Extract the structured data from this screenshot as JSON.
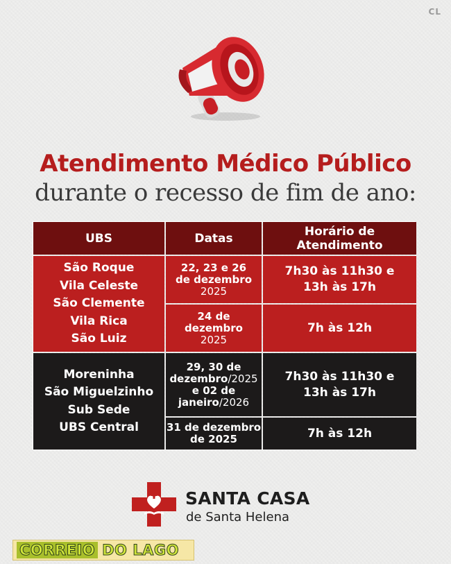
{
  "corner_mark": "CL",
  "title_line1": "Atendimento Médico Público",
  "title_line2": "durante o recesso de fim de ano:",
  "table": {
    "headers": [
      "UBS",
      "Datas",
      "Horário de Atendimento"
    ],
    "group1": {
      "ubs": [
        "São Roque",
        "Vila Celeste",
        "São Clemente",
        "Vila Rica",
        "São Luiz"
      ],
      "row1": {
        "date_line1": "22, 23 e 26",
        "date_line2": "de dezembro",
        "date_year": "2025",
        "hours_line1": "7h30 às 11h30 e",
        "hours_line2": "13h às 17h"
      },
      "row2": {
        "date_line1": "24 de",
        "date_line2": "dezembro",
        "date_year": "2025",
        "hours": "7h às 12h"
      }
    },
    "group2": {
      "ubs": [
        "Moreninha",
        "São Miguelzinho",
        "Sub Sede",
        "UBS Central"
      ],
      "row1": {
        "date_line1": "29, 30 de",
        "date_line2a": "dezembro",
        "date_line2b": "/2025",
        "date_line3": "e 02 de",
        "date_line4a": "janeiro",
        "date_line4b": "/2026",
        "hours_line1": "7h30 às 11h30 e",
        "hours_line2": "13h às 17h"
      },
      "row2": {
        "date_line1": "31 de dezembro",
        "date_line2": "de 2025",
        "hours": "7h às 12h"
      }
    }
  },
  "brand": {
    "name": "SANTA CASA",
    "subtitle": "de Santa Helena"
  },
  "watermark": {
    "part1": "CORREIO",
    "part2": "DO LAGO"
  },
  "colors": {
    "red": "#bb1f1f",
    "dark_red": "#6e0f0f",
    "black": "#1c1a1a",
    "title_red": "#b51d1d"
  },
  "icons": [
    "megaphone-icon",
    "santa-casa-logo-icon"
  ]
}
